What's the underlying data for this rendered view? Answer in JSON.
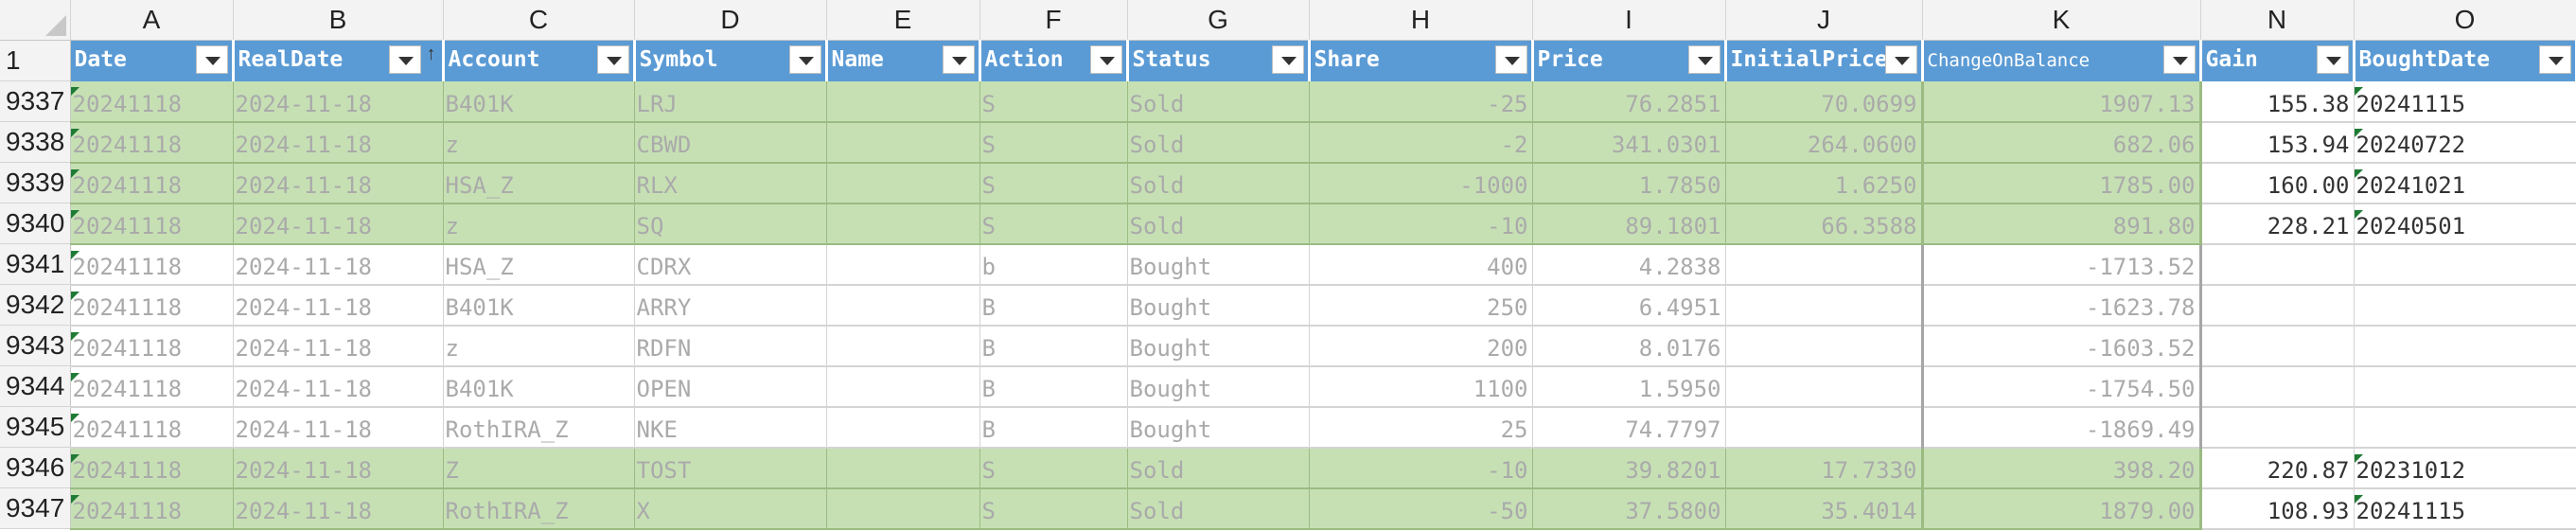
{
  "column_letters": [
    "A",
    "B",
    "C",
    "D",
    "E",
    "F",
    "G",
    "H",
    "I",
    "J",
    "K",
    "N",
    "O"
  ],
  "header_row_number": "1",
  "fields": [
    "Date",
    "RealDate",
    "Account",
    "Symbol",
    "Name",
    "Action",
    "Status",
    "Share",
    "Price",
    "InitialPrice",
    "ChangeOnBalance",
    "Gain",
    "BoughtDate"
  ],
  "rows": [
    {
      "num": "9337",
      "sold": true,
      "cells": [
        "20241118",
        "2024-11-18",
        "B401K",
        "LRJ",
        "",
        "S",
        "Sold",
        "-25",
        "76.2851",
        "70.0699",
        "1907.13",
        "155.38",
        "20241115"
      ]
    },
    {
      "num": "9338",
      "sold": true,
      "cells": [
        "20241118",
        "2024-11-18",
        "z",
        "CBWD",
        "",
        "S",
        "Sold",
        "-2",
        "341.0301",
        "264.0600",
        "682.06",
        "153.94",
        "20240722"
      ]
    },
    {
      "num": "9339",
      "sold": true,
      "cells": [
        "20241118",
        "2024-11-18",
        "HSA_Z",
        "RLX",
        "",
        "S",
        "Sold",
        "-1000",
        "1.7850",
        "1.6250",
        "1785.00",
        "160.00",
        "20241021"
      ]
    },
    {
      "num": "9340",
      "sold": true,
      "cells": [
        "20241118",
        "2024-11-18",
        "z",
        "SQ",
        "",
        "S",
        "Sold",
        "-10",
        "89.1801",
        "66.3588",
        "891.80",
        "228.21",
        "20240501"
      ]
    },
    {
      "num": "9341",
      "sold": false,
      "cells": [
        "20241118",
        "2024-11-18",
        "HSA_Z",
        "CDRX",
        "",
        "b",
        "Bought",
        "400",
        "4.2838",
        "",
        "-1713.52",
        "",
        ""
      ]
    },
    {
      "num": "9342",
      "sold": false,
      "cells": [
        "20241118",
        "2024-11-18",
        "B401K",
        "ARRY",
        "",
        "B",
        "Bought",
        "250",
        "6.4951",
        "",
        "-1623.78",
        "",
        ""
      ]
    },
    {
      "num": "9343",
      "sold": false,
      "cells": [
        "20241118",
        "2024-11-18",
        "z",
        "RDFN",
        "",
        "B",
        "Bought",
        "200",
        "8.0176",
        "",
        "-1603.52",
        "",
        ""
      ]
    },
    {
      "num": "9344",
      "sold": false,
      "cells": [
        "20241118",
        "2024-11-18",
        "B401K",
        "OPEN",
        "",
        "B",
        "Bought",
        "1100",
        "1.5950",
        "",
        "-1754.50",
        "",
        ""
      ]
    },
    {
      "num": "9345",
      "sold": false,
      "cells": [
        "20241118",
        "2024-11-18",
        "RothIRA_Z",
        "NKE",
        "",
        "B",
        "Bought",
        "25",
        "74.7797",
        "",
        "-1869.49",
        "",
        ""
      ]
    },
    {
      "num": "9346",
      "sold": true,
      "cells": [
        "20241118",
        "2024-11-18",
        "Z",
        "TOST",
        "",
        "S",
        "Sold",
        "-10",
        "39.8201",
        "17.7330",
        "398.20",
        "220.87",
        "20231012"
      ]
    },
    {
      "num": "9347",
      "sold": true,
      "cells": [
        "20241118",
        "2024-11-18",
        "RothIRA_Z",
        "X",
        "",
        "S",
        "Sold",
        "-50",
        "37.5800",
        "35.4014",
        "1879.00",
        "108.93",
        "20241115"
      ]
    }
  ]
}
